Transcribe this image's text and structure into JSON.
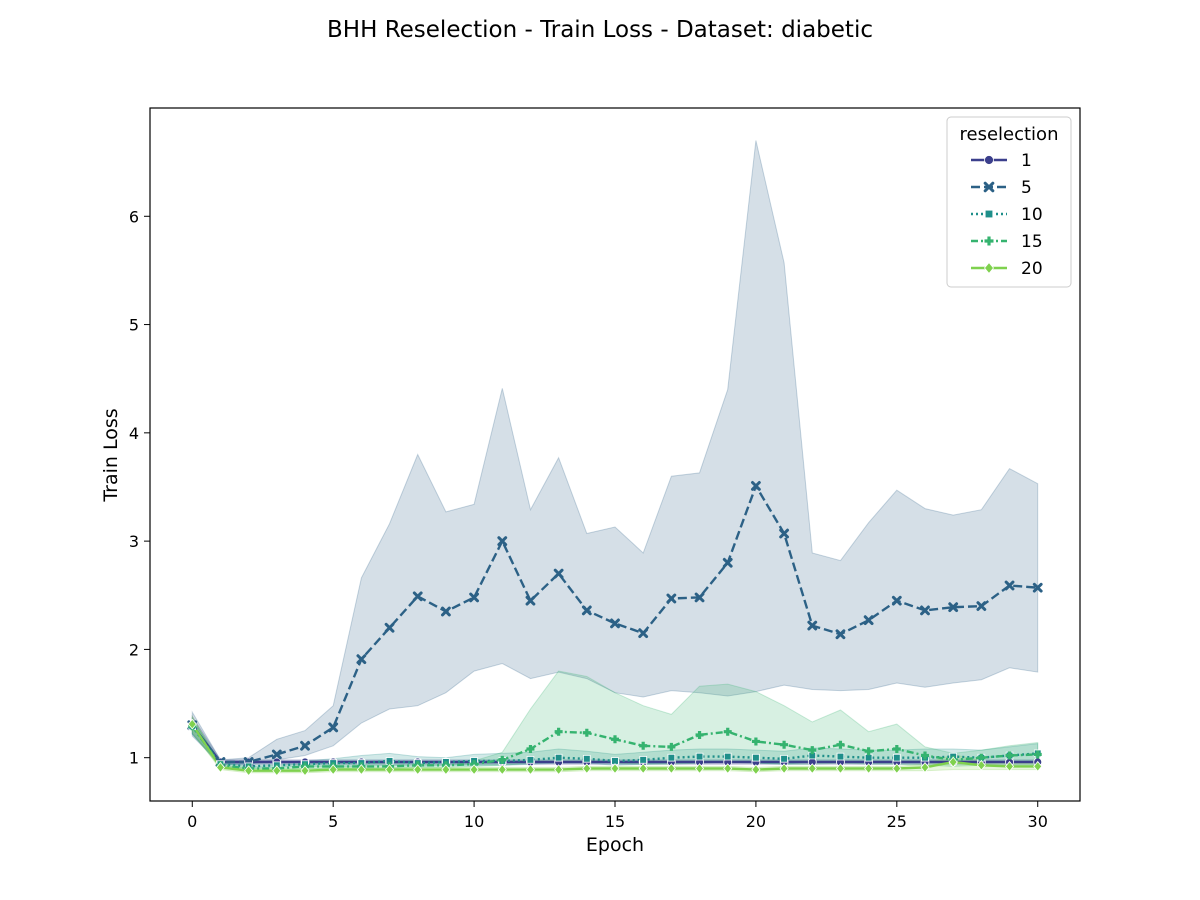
{
  "chart_data": {
    "type": "line",
    "title": "BHH Reselection - Train Loss - Dataset: diabetic",
    "xlabel": "Epoch",
    "ylabel": "Train Loss",
    "xlim": [
      -1.5,
      31.5
    ],
    "ylim": [
      0.6,
      7.0
    ],
    "x_ticks": [
      0,
      5,
      10,
      15,
      20,
      25,
      30
    ],
    "y_ticks": [
      1,
      2,
      3,
      4,
      5,
      6
    ],
    "grid": false,
    "legend": {
      "title": "reselection",
      "placement": "top-right"
    },
    "x": [
      0,
      1,
      2,
      3,
      4,
      5,
      6,
      7,
      8,
      9,
      10,
      11,
      12,
      13,
      14,
      15,
      16,
      17,
      18,
      19,
      20,
      21,
      22,
      23,
      24,
      25,
      26,
      27,
      28,
      29,
      30
    ],
    "series": [
      {
        "name": "1",
        "color": "#3b3f8c",
        "dash": "solid",
        "marker": "circle",
        "values": [
          1.3,
          0.96,
          0.96,
          0.96,
          0.96,
          0.96,
          0.96,
          0.96,
          0.96,
          0.96,
          0.96,
          0.96,
          0.96,
          0.96,
          0.96,
          0.96,
          0.96,
          0.96,
          0.96,
          0.96,
          0.96,
          0.96,
          0.96,
          0.96,
          0.96,
          0.96,
          0.96,
          0.96,
          0.96,
          0.96,
          0.96
        ],
        "lower": [
          1.22,
          0.94,
          0.94,
          0.94,
          0.94,
          0.94,
          0.94,
          0.94,
          0.94,
          0.94,
          0.94,
          0.94,
          0.94,
          0.94,
          0.94,
          0.94,
          0.94,
          0.94,
          0.94,
          0.94,
          0.94,
          0.94,
          0.94,
          0.94,
          0.94,
          0.94,
          0.94,
          0.94,
          0.94,
          0.94,
          0.94
        ],
        "upper": [
          1.38,
          0.98,
          0.98,
          0.98,
          0.98,
          0.98,
          0.98,
          0.98,
          0.98,
          0.98,
          0.98,
          0.98,
          0.98,
          0.98,
          0.98,
          0.98,
          0.98,
          0.98,
          0.98,
          0.98,
          0.98,
          0.98,
          0.98,
          0.98,
          0.98,
          0.98,
          0.98,
          0.98,
          0.98,
          0.98,
          0.98
        ]
      },
      {
        "name": "5",
        "color": "#2c6186",
        "dash": "dashed",
        "marker": "x",
        "values": [
          1.3,
          0.96,
          0.96,
          1.03,
          1.11,
          1.28,
          1.91,
          2.2,
          2.49,
          2.35,
          2.48,
          3.0,
          2.45,
          2.7,
          2.36,
          2.24,
          2.15,
          2.47,
          2.48,
          2.8,
          3.51,
          3.07,
          2.22,
          2.14,
          2.27,
          2.45,
          2.36,
          2.39,
          2.4,
          2.59,
          2.57
        ],
        "lower": [
          1.2,
          0.94,
          0.94,
          0.98,
          1.02,
          1.11,
          1.32,
          1.45,
          1.48,
          1.6,
          1.8,
          1.87,
          1.73,
          1.79,
          1.73,
          1.6,
          1.56,
          1.62,
          1.6,
          1.57,
          1.61,
          1.67,
          1.63,
          1.62,
          1.63,
          1.69,
          1.65,
          1.69,
          1.72,
          1.83,
          1.79
        ],
        "upper": [
          1.42,
          0.98,
          1.0,
          1.17,
          1.25,
          1.48,
          2.66,
          3.16,
          3.8,
          3.27,
          3.34,
          4.41,
          3.29,
          3.77,
          3.07,
          3.13,
          2.89,
          3.6,
          3.63,
          4.4,
          6.7,
          5.57,
          2.89,
          2.82,
          3.17,
          3.47,
          3.3,
          3.24,
          3.29,
          3.67,
          3.53
        ]
      },
      {
        "name": "10",
        "color": "#1f8f8a",
        "dash": "dotted",
        "marker": "square",
        "values": [
          1.29,
          0.94,
          0.92,
          0.93,
          0.94,
          0.95,
          0.95,
          0.97,
          0.95,
          0.96,
          0.97,
          0.97,
          0.98,
          1.0,
          0.99,
          0.97,
          0.98,
          1.0,
          1.01,
          1.01,
          1.0,
          0.99,
          1.02,
          1.01,
          1.0,
          1.0,
          1.0,
          1.01,
          1.0,
          1.02,
          1.04
        ],
        "lower": [
          1.22,
          0.92,
          0.9,
          0.91,
          0.92,
          0.92,
          0.92,
          0.93,
          0.92,
          0.93,
          0.93,
          0.93,
          0.94,
          0.95,
          0.95,
          0.93,
          0.94,
          0.95,
          0.95,
          0.96,
          0.95,
          0.94,
          0.96,
          0.96,
          0.95,
          0.95,
          0.95,
          0.96,
          0.95,
          0.96,
          0.97
        ],
        "upper": [
          1.36,
          0.96,
          0.95,
          0.96,
          0.97,
          0.99,
          1.02,
          1.04,
          1.01,
          1.0,
          1.03,
          1.04,
          1.05,
          1.08,
          1.06,
          1.03,
          1.05,
          1.07,
          1.08,
          1.08,
          1.07,
          1.06,
          1.09,
          1.08,
          1.07,
          1.07,
          1.08,
          1.08,
          1.07,
          1.1,
          1.13
        ]
      },
      {
        "name": "15",
        "color": "#35b36f",
        "dash": "dashdot",
        "marker": "plus",
        "values": [
          1.29,
          0.93,
          0.9,
          0.9,
          0.92,
          0.92,
          0.92,
          0.92,
          0.93,
          0.93,
          0.94,
          0.98,
          1.08,
          1.24,
          1.23,
          1.17,
          1.11,
          1.1,
          1.21,
          1.24,
          1.15,
          1.12,
          1.07,
          1.12,
          1.06,
          1.08,
          1.02,
          0.98,
          1.0,
          1.02,
          1.03
        ],
        "lower": [
          1.22,
          0.91,
          0.88,
          0.88,
          0.9,
          0.9,
          0.9,
          0.9,
          0.91,
          0.91,
          0.92,
          0.93,
          0.95,
          0.96,
          0.96,
          0.95,
          0.94,
          0.94,
          0.95,
          0.96,
          0.95,
          0.94,
          0.94,
          0.95,
          0.94,
          0.94,
          0.93,
          0.92,
          0.93,
          0.93,
          0.93
        ],
        "upper": [
          1.36,
          0.95,
          0.92,
          0.93,
          0.94,
          0.95,
          0.95,
          0.95,
          0.96,
          0.96,
          0.97,
          1.05,
          1.45,
          1.8,
          1.75,
          1.6,
          1.48,
          1.4,
          1.66,
          1.68,
          1.61,
          1.48,
          1.33,
          1.44,
          1.24,
          1.31,
          1.1,
          1.04,
          1.07,
          1.11,
          1.14
        ]
      },
      {
        "name": "20",
        "color": "#7fd14e",
        "dash": "solid",
        "marker": "diamond",
        "values": [
          1.31,
          0.91,
          0.88,
          0.88,
          0.88,
          0.89,
          0.89,
          0.89,
          0.89,
          0.89,
          0.89,
          0.89,
          0.89,
          0.89,
          0.9,
          0.9,
          0.9,
          0.9,
          0.9,
          0.9,
          0.89,
          0.9,
          0.9,
          0.9,
          0.9,
          0.9,
          0.91,
          0.96,
          0.93,
          0.92,
          0.92
        ],
        "lower": [
          1.24,
          0.89,
          0.86,
          0.86,
          0.86,
          0.87,
          0.87,
          0.87,
          0.87,
          0.87,
          0.87,
          0.87,
          0.87,
          0.87,
          0.88,
          0.88,
          0.88,
          0.88,
          0.88,
          0.88,
          0.87,
          0.88,
          0.88,
          0.88,
          0.88,
          0.88,
          0.88,
          0.89,
          0.89,
          0.89,
          0.89
        ],
        "upper": [
          1.38,
          0.93,
          0.9,
          0.9,
          0.9,
          0.91,
          0.91,
          0.91,
          0.91,
          0.91,
          0.91,
          0.91,
          0.91,
          0.91,
          0.92,
          0.92,
          0.92,
          0.92,
          0.92,
          0.92,
          0.91,
          0.92,
          0.92,
          0.92,
          0.92,
          0.92,
          0.94,
          1.03,
          0.97,
          0.95,
          0.95
        ]
      }
    ]
  }
}
